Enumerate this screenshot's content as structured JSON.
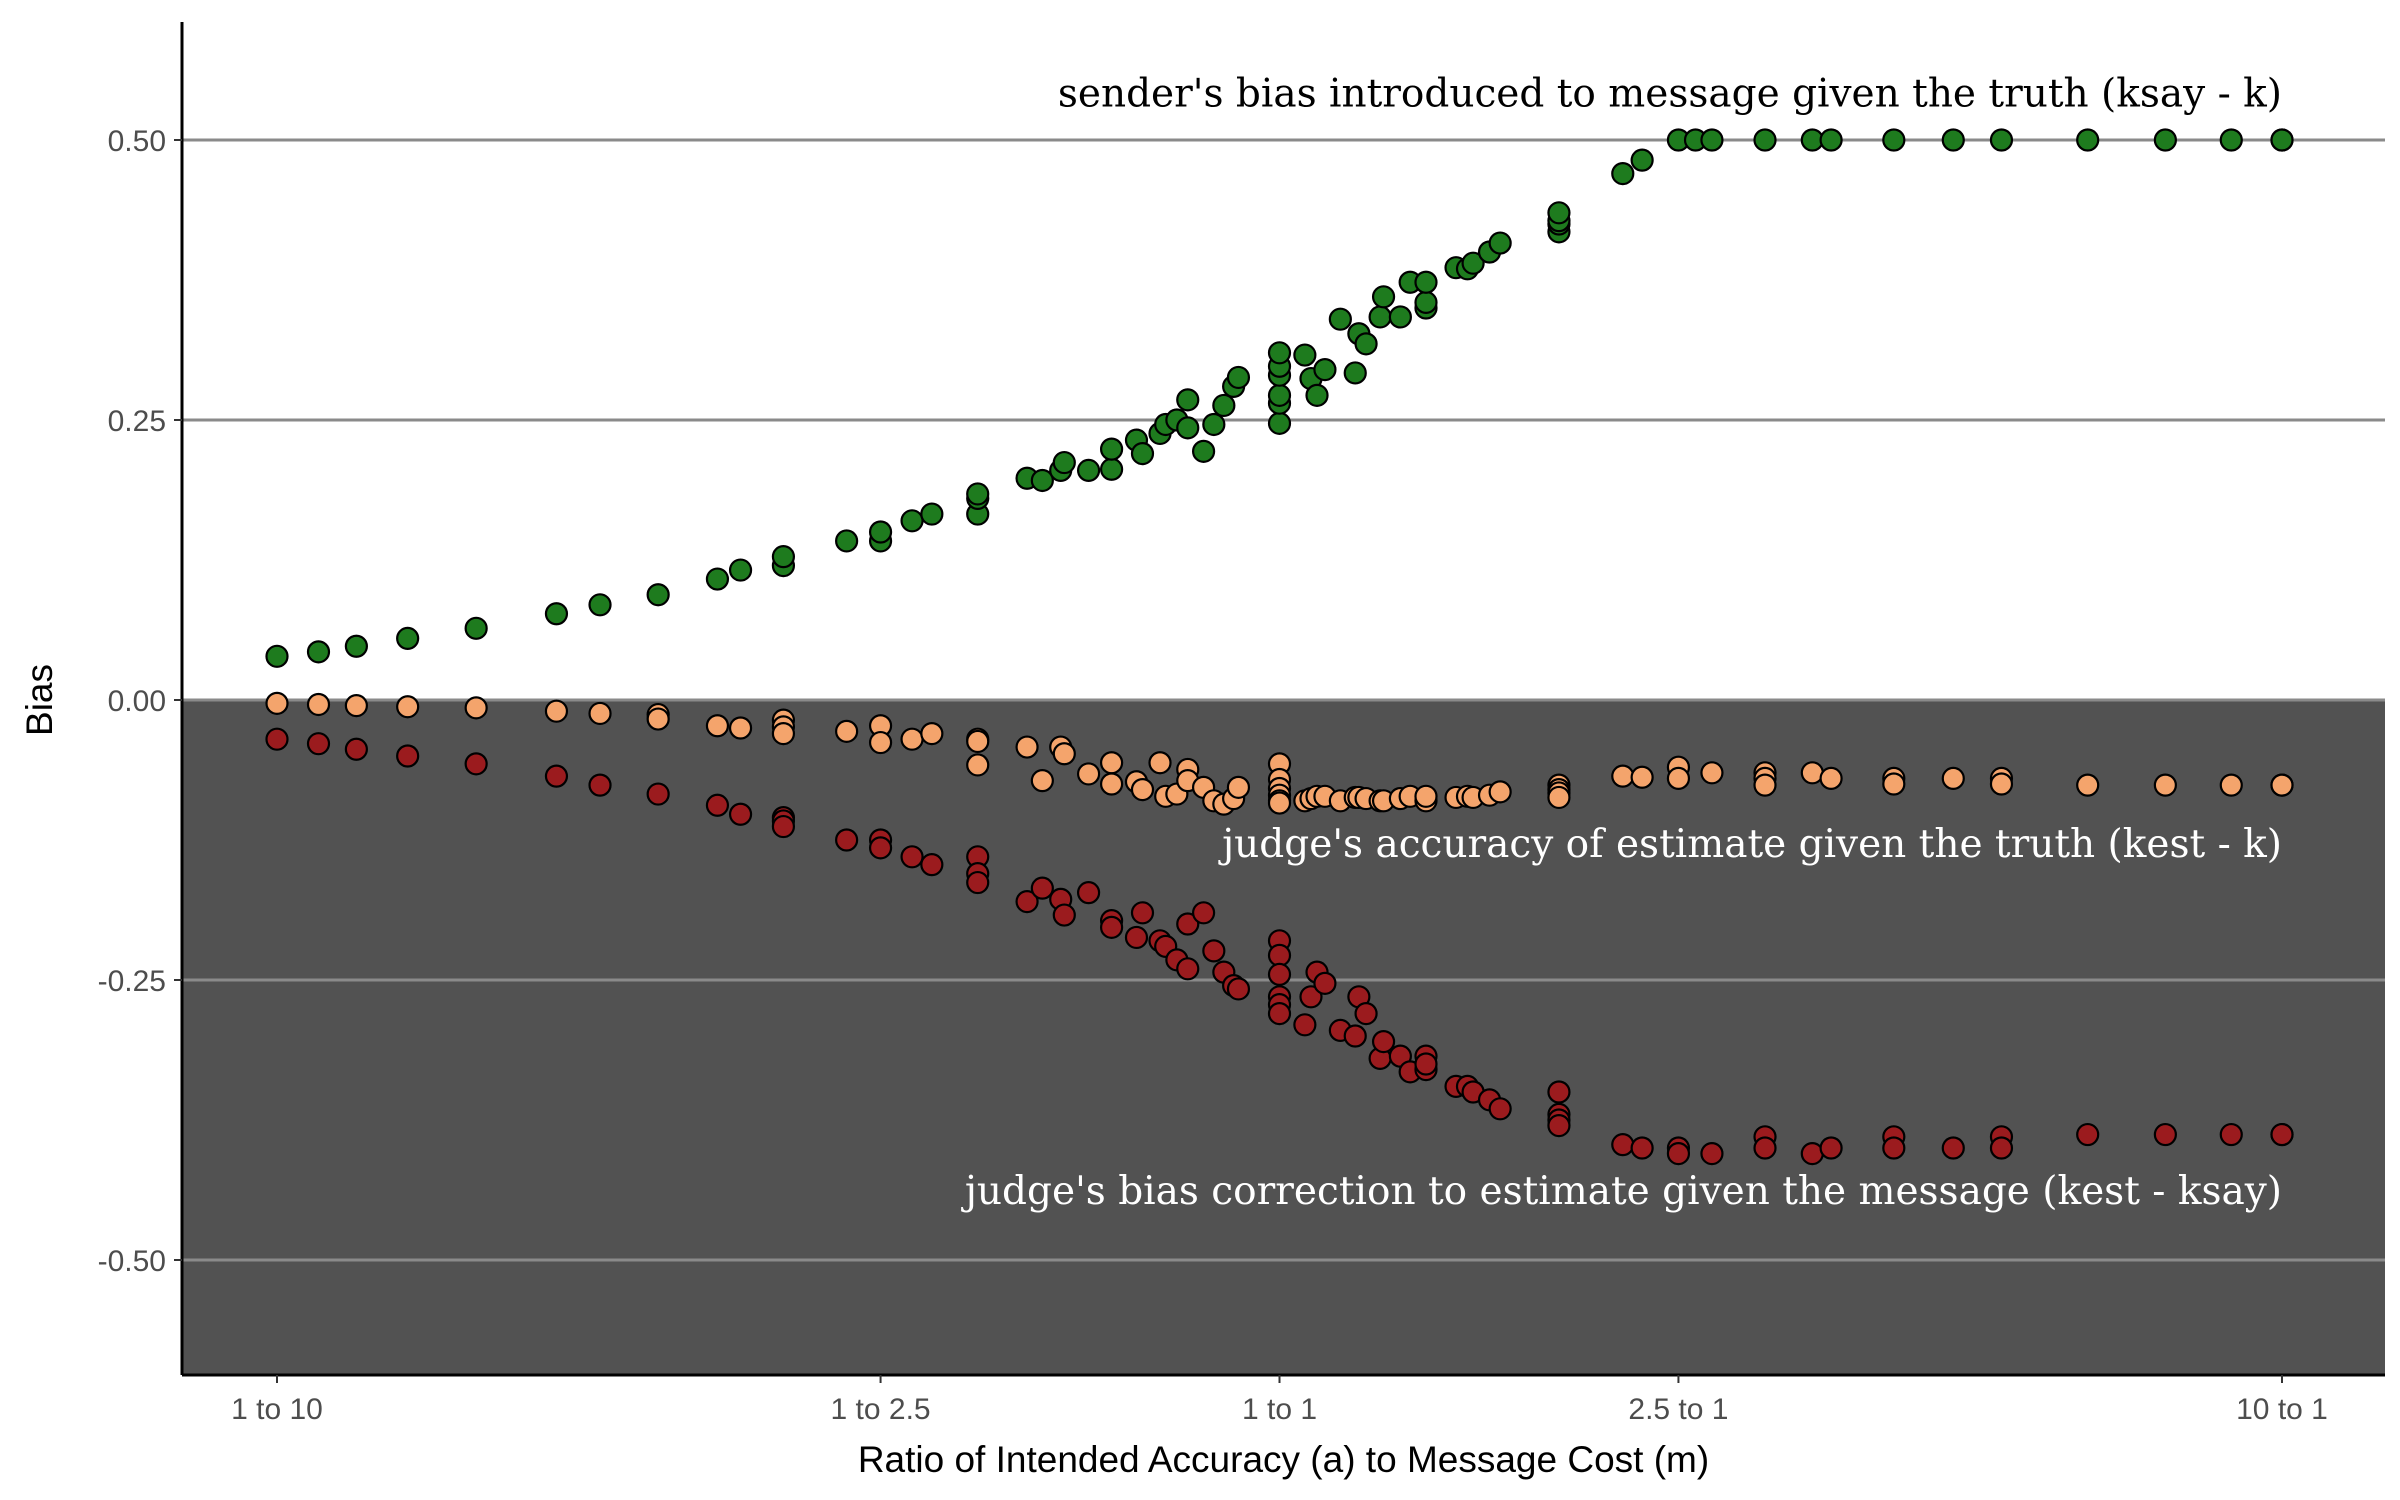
{
  "chart_data": {
    "type": "scatter",
    "xlabel": "Ratio of Intended Accuracy (a) to Message Cost (m)",
    "ylabel": "Bias",
    "x_scale": "log",
    "xlim": [
      0.07,
      13.0
    ],
    "ylim": [
      -0.6,
      0.6
    ],
    "x_ticks": [
      {
        "value": 0.1,
        "label": "1 to 10"
      },
      {
        "value": 0.4,
        "label": "1 to 2.5"
      },
      {
        "value": 1,
        "label": "1 to 1"
      },
      {
        "value": 2.5,
        "label": "2.5 to 1"
      },
      {
        "value": 10,
        "label": "10 to 1"
      }
    ],
    "y_ticks": [
      {
        "value": 0.5,
        "label": "0.50"
      },
      {
        "value": 0.25,
        "label": "0.25"
      },
      {
        "value": 0.0,
        "label": "0.00"
      },
      {
        "value": -0.25,
        "label": "-0.25"
      },
      {
        "value": -0.5,
        "label": "-0.50"
      }
    ],
    "grid": "horizontal",
    "shaded_region": {
      "from_y": -0.6,
      "to_y": 0.0,
      "color": "#525252"
    },
    "annotations": [
      {
        "text": "sender's bias introduced to message given the truth (ksay - k)",
        "x": 10.0,
        "y": 0.53,
        "color": "#000000"
      },
      {
        "text": "judge's accuracy of estimate given the truth (kest - k)",
        "x": 10.0,
        "y": -0.14,
        "color": "#ffffff"
      },
      {
        "text": "judge's bias correction to estimate given the message (kest - ksay)",
        "x": 10.0,
        "y": -0.45,
        "color": "#ffffff"
      }
    ],
    "series": [
      {
        "color": "#1e7b1e",
        "points": [
          [
            0.1,
            0.039
          ],
          [
            0.11,
            0.043
          ],
          [
            0.12,
            0.048
          ],
          [
            0.135,
            0.055
          ],
          [
            0.158,
            0.064
          ],
          [
            0.19,
            0.077
          ],
          [
            0.21,
            0.085
          ],
          [
            0.24,
            0.094
          ],
          [
            0.275,
            0.108
          ],
          [
            0.29,
            0.116
          ],
          [
            0.32,
            0.12
          ],
          [
            0.32,
            0.128
          ],
          [
            0.37,
            0.142
          ],
          [
            0.4,
            0.142
          ],
          [
            0.4,
            0.15
          ],
          [
            0.43,
            0.16
          ],
          [
            0.45,
            0.166
          ],
          [
            0.5,
            0.166
          ],
          [
            0.5,
            0.18
          ],
          [
            0.5,
            0.184
          ],
          [
            0.56,
            0.198
          ],
          [
            0.58,
            0.196
          ],
          [
            0.605,
            0.205
          ],
          [
            0.61,
            0.212
          ],
          [
            0.645,
            0.205
          ],
          [
            0.68,
            0.206
          ],
          [
            0.68,
            0.224
          ],
          [
            0.72,
            0.232
          ],
          [
            0.73,
            0.22
          ],
          [
            0.76,
            0.238
          ],
          [
            0.77,
            0.246
          ],
          [
            0.79,
            0.25
          ],
          [
            0.81,
            0.243
          ],
          [
            0.81,
            0.268
          ],
          [
            0.84,
            0.222
          ],
          [
            0.86,
            0.246
          ],
          [
            0.88,
            0.263
          ],
          [
            0.9,
            0.28
          ],
          [
            0.91,
            0.288
          ],
          [
            1.0,
            0.247
          ],
          [
            1.0,
            0.265
          ],
          [
            1.0,
            0.272
          ],
          [
            1.0,
            0.29
          ],
          [
            1.0,
            0.298
          ],
          [
            1.0,
            0.31
          ],
          [
            1.06,
            0.308
          ],
          [
            1.075,
            0.287
          ],
          [
            1.09,
            0.272
          ],
          [
            1.11,
            0.295
          ],
          [
            1.15,
            0.34
          ],
          [
            1.19,
            0.292
          ],
          [
            1.2,
            0.327
          ],
          [
            1.22,
            0.318
          ],
          [
            1.26,
            0.342
          ],
          [
            1.27,
            0.36
          ],
          [
            1.32,
            0.342
          ],
          [
            1.35,
            0.373
          ],
          [
            1.4,
            0.35
          ],
          [
            1.4,
            0.355
          ],
          [
            1.4,
            0.373
          ],
          [
            1.5,
            0.386
          ],
          [
            1.54,
            0.385
          ],
          [
            1.56,
            0.39
          ],
          [
            1.62,
            0.4
          ],
          [
            1.66,
            0.408
          ],
          [
            1.9,
            0.418
          ],
          [
            1.9,
            0.425
          ],
          [
            1.9,
            0.428
          ],
          [
            1.9,
            0.435
          ],
          [
            2.2,
            0.47
          ],
          [
            2.3,
            0.482
          ],
          [
            2.5,
            0.5
          ],
          [
            2.6,
            0.5
          ],
          [
            2.7,
            0.5
          ],
          [
            3.05,
            0.5
          ],
          [
            3.4,
            0.5
          ],
          [
            3.55,
            0.5
          ],
          [
            4.1,
            0.5
          ],
          [
            4.7,
            0.5
          ],
          [
            5.25,
            0.5
          ],
          [
            6.4,
            0.5
          ],
          [
            7.65,
            0.5
          ],
          [
            8.9,
            0.5
          ],
          [
            10.0,
            0.5
          ],
          [
            10.0,
            0.5
          ]
        ]
      },
      {
        "color": "#f4a46c",
        "points": [
          [
            0.1,
            -0.003
          ],
          [
            0.11,
            -0.004
          ],
          [
            0.12,
            -0.005
          ],
          [
            0.135,
            -0.006
          ],
          [
            0.158,
            -0.007
          ],
          [
            0.19,
            -0.01
          ],
          [
            0.21,
            -0.012
          ],
          [
            0.24,
            -0.013
          ],
          [
            0.24,
            -0.017
          ],
          [
            0.275,
            -0.023
          ],
          [
            0.29,
            -0.025
          ],
          [
            0.32,
            -0.018
          ],
          [
            0.32,
            -0.024
          ],
          [
            0.32,
            -0.03
          ],
          [
            0.37,
            -0.028
          ],
          [
            0.4,
            -0.023
          ],
          [
            0.4,
            -0.038
          ],
          [
            0.43,
            -0.035
          ],
          [
            0.45,
            -0.03
          ],
          [
            0.5,
            -0.035
          ],
          [
            0.5,
            -0.037
          ],
          [
            0.5,
            -0.058
          ],
          [
            0.56,
            -0.042
          ],
          [
            0.58,
            -0.072
          ],
          [
            0.605,
            -0.042
          ],
          [
            0.61,
            -0.048
          ],
          [
            0.645,
            -0.066
          ],
          [
            0.68,
            -0.056
          ],
          [
            0.68,
            -0.075
          ],
          [
            0.72,
            -0.073
          ],
          [
            0.73,
            -0.08
          ],
          [
            0.76,
            -0.056
          ],
          [
            0.77,
            -0.086
          ],
          [
            0.79,
            -0.084
          ],
          [
            0.81,
            -0.062
          ],
          [
            0.81,
            -0.072
          ],
          [
            0.84,
            -0.078
          ],
          [
            0.86,
            -0.09
          ],
          [
            0.88,
            -0.093
          ],
          [
            0.9,
            -0.088
          ],
          [
            0.91,
            -0.078
          ],
          [
            1.0,
            -0.057
          ],
          [
            1.0,
            -0.071
          ],
          [
            1.0,
            -0.079
          ],
          [
            1.0,
            -0.085
          ],
          [
            1.0,
            -0.09
          ],
          [
            1.0,
            -0.092
          ],
          [
            1.06,
            -0.09
          ],
          [
            1.075,
            -0.088
          ],
          [
            1.09,
            -0.086
          ],
          [
            1.11,
            -0.086
          ],
          [
            1.15,
            -0.09
          ],
          [
            1.19,
            -0.087
          ],
          [
            1.2,
            -0.087
          ],
          [
            1.22,
            -0.088
          ],
          [
            1.26,
            -0.09
          ],
          [
            1.27,
            -0.09
          ],
          [
            1.32,
            -0.088
          ],
          [
            1.35,
            -0.086
          ],
          [
            1.4,
            -0.09
          ],
          [
            1.4,
            -0.086
          ],
          [
            1.5,
            -0.087
          ],
          [
            1.54,
            -0.086
          ],
          [
            1.56,
            -0.087
          ],
          [
            1.62,
            -0.085
          ],
          [
            1.66,
            -0.082
          ],
          [
            1.9,
            -0.076
          ],
          [
            1.9,
            -0.08
          ],
          [
            1.9,
            -0.083
          ],
          [
            1.9,
            -0.087
          ],
          [
            2.2,
            -0.068
          ],
          [
            2.3,
            -0.069
          ],
          [
            2.5,
            -0.06
          ],
          [
            2.5,
            -0.07
          ],
          [
            2.7,
            -0.065
          ],
          [
            3.05,
            -0.065
          ],
          [
            3.05,
            -0.07
          ],
          [
            3.05,
            -0.076
          ],
          [
            3.4,
            -0.065
          ],
          [
            3.55,
            -0.07
          ],
          [
            4.1,
            -0.07
          ],
          [
            4.1,
            -0.075
          ],
          [
            4.7,
            -0.07
          ],
          [
            5.25,
            -0.07
          ],
          [
            5.25,
            -0.075
          ],
          [
            6.4,
            -0.076
          ],
          [
            7.65,
            -0.076
          ],
          [
            8.9,
            -0.076
          ],
          [
            10.0,
            -0.076
          ],
          [
            10.0,
            -0.076
          ]
        ]
      },
      {
        "color": "#9b1b1e",
        "points": [
          [
            0.1,
            -0.035
          ],
          [
            0.11,
            -0.039
          ],
          [
            0.12,
            -0.044
          ],
          [
            0.135,
            -0.05
          ],
          [
            0.158,
            -0.057
          ],
          [
            0.19,
            -0.068
          ],
          [
            0.21,
            -0.076
          ],
          [
            0.24,
            -0.084
          ],
          [
            0.275,
            -0.094
          ],
          [
            0.29,
            -0.102
          ],
          [
            0.32,
            -0.105
          ],
          [
            0.32,
            -0.108
          ],
          [
            0.32,
            -0.113
          ],
          [
            0.37,
            -0.125
          ],
          [
            0.4,
            -0.125
          ],
          [
            0.4,
            -0.132
          ],
          [
            0.43,
            -0.14
          ],
          [
            0.45,
            -0.147
          ],
          [
            0.5,
            -0.14
          ],
          [
            0.5,
            -0.155
          ],
          [
            0.5,
            -0.163
          ],
          [
            0.56,
            -0.18
          ],
          [
            0.58,
            -0.168
          ],
          [
            0.605,
            -0.178
          ],
          [
            0.61,
            -0.192
          ],
          [
            0.645,
            -0.172
          ],
          [
            0.68,
            -0.197
          ],
          [
            0.68,
            -0.203
          ],
          [
            0.72,
            -0.212
          ],
          [
            0.73,
            -0.19
          ],
          [
            0.76,
            -0.215
          ],
          [
            0.77,
            -0.22
          ],
          [
            0.79,
            -0.232
          ],
          [
            0.81,
            -0.2
          ],
          [
            0.81,
            -0.24
          ],
          [
            0.84,
            -0.19
          ],
          [
            0.86,
            -0.224
          ],
          [
            0.88,
            -0.243
          ],
          [
            0.9,
            -0.255
          ],
          [
            0.91,
            -0.258
          ],
          [
            1.0,
            -0.215
          ],
          [
            1.0,
            -0.228
          ],
          [
            1.0,
            -0.245
          ],
          [
            1.0,
            -0.265
          ],
          [
            1.0,
            -0.272
          ],
          [
            1.0,
            -0.28
          ],
          [
            1.06,
            -0.29
          ],
          [
            1.075,
            -0.265
          ],
          [
            1.09,
            -0.243
          ],
          [
            1.11,
            -0.253
          ],
          [
            1.15,
            -0.295
          ],
          [
            1.19,
            -0.3
          ],
          [
            1.2,
            -0.265
          ],
          [
            1.22,
            -0.28
          ],
          [
            1.26,
            -0.32
          ],
          [
            1.27,
            -0.305
          ],
          [
            1.32,
            -0.318
          ],
          [
            1.35,
            -0.332
          ],
          [
            1.4,
            -0.318
          ],
          [
            1.4,
            -0.33
          ],
          [
            1.4,
            -0.325
          ],
          [
            1.5,
            -0.345
          ],
          [
            1.54,
            -0.345
          ],
          [
            1.56,
            -0.35
          ],
          [
            1.62,
            -0.357
          ],
          [
            1.66,
            -0.365
          ],
          [
            1.9,
            -0.35
          ],
          [
            1.9,
            -0.37
          ],
          [
            1.9,
            -0.375
          ],
          [
            1.9,
            -0.38
          ],
          [
            2.2,
            -0.397
          ],
          [
            2.3,
            -0.4
          ],
          [
            2.5,
            -0.4
          ],
          [
            2.5,
            -0.405
          ],
          [
            2.7,
            -0.405
          ],
          [
            3.05,
            -0.39
          ],
          [
            3.05,
            -0.4
          ],
          [
            3.4,
            -0.405
          ],
          [
            3.55,
            -0.4
          ],
          [
            4.1,
            -0.39
          ],
          [
            4.1,
            -0.4
          ],
          [
            4.7,
            -0.4
          ],
          [
            5.25,
            -0.39
          ],
          [
            5.25,
            -0.4
          ],
          [
            6.4,
            -0.388
          ],
          [
            7.65,
            -0.388
          ],
          [
            8.9,
            -0.388
          ],
          [
            10.0,
            -0.388
          ],
          [
            10.0,
            -0.388
          ]
        ]
      }
    ]
  }
}
